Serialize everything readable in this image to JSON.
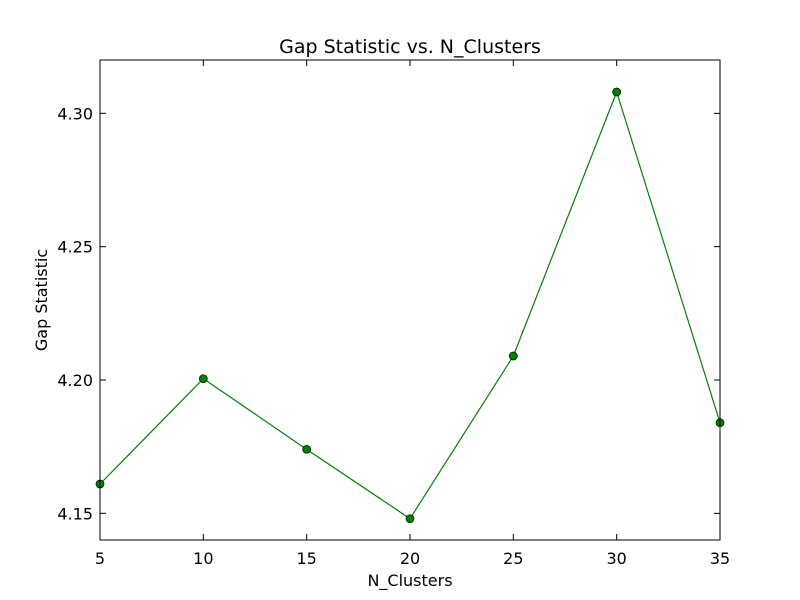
{
  "chart_data": {
    "type": "line",
    "title": "Gap Statistic vs. N_Clusters",
    "xlabel": "N_Clusters",
    "ylabel": "Gap Statistic",
    "x": [
      5,
      10,
      15,
      20,
      25,
      30,
      35
    ],
    "series": [
      {
        "values": [
          4.161,
          4.2005,
          4.174,
          4.148,
          4.209,
          4.308,
          4.184
        ],
        "color": "#008000",
        "marker": "circle"
      }
    ],
    "xlim": [
      5,
      35
    ],
    "ylim": [
      4.14,
      4.32
    ],
    "x_ticks": [
      5,
      10,
      15,
      20,
      25,
      30,
      35
    ],
    "x_tick_labels": [
      "5",
      "10",
      "15",
      "20",
      "25",
      "30",
      "35"
    ],
    "y_ticks": [
      4.15,
      4.2,
      4.25,
      4.3
    ],
    "y_tick_labels": [
      "4.15",
      "4.20",
      "4.25",
      "4.30"
    ],
    "grid": false,
    "legend": "none"
  }
}
